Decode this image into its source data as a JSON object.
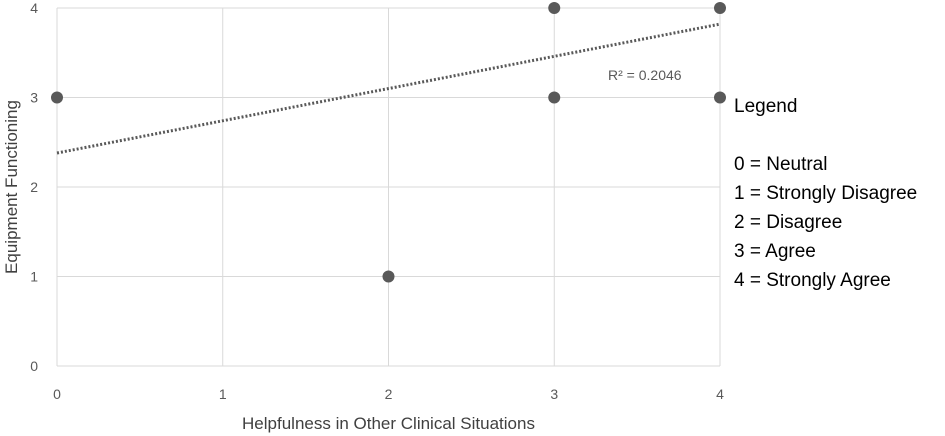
{
  "chart_data": {
    "type": "scatter",
    "xlabel": "Helpfulness in Other Clinical Situations",
    "ylabel": "Equipment Functioning",
    "xlim": [
      0,
      4
    ],
    "ylim": [
      0,
      4
    ],
    "x_ticks": [
      "0",
      "1",
      "2",
      "3",
      "4"
    ],
    "y_ticks": [
      "0",
      "1",
      "2",
      "3",
      "4"
    ],
    "grid": true,
    "points": [
      {
        "x": 0,
        "y": 3
      },
      {
        "x": 2,
        "y": 1
      },
      {
        "x": 3,
        "y": 4
      },
      {
        "x": 3,
        "y": 3
      },
      {
        "x": 4,
        "y": 4
      },
      {
        "x": 4,
        "y": 3
      }
    ],
    "trendline": {
      "style": "dotted",
      "y_at_xmin": 2.38,
      "y_at_xmax": 3.82,
      "r_squared_label": "R² = 0.2046"
    },
    "colors": {
      "marker": "#595959",
      "grid": "#d9d9d9",
      "trendline": "#595959"
    }
  },
  "legend": {
    "title": "Legend",
    "items": [
      "0 = Neutral",
      "1 = Strongly Disagree",
      "2 = Disagree",
      "3 = Agree",
      "4 = Strongly Agree"
    ]
  }
}
